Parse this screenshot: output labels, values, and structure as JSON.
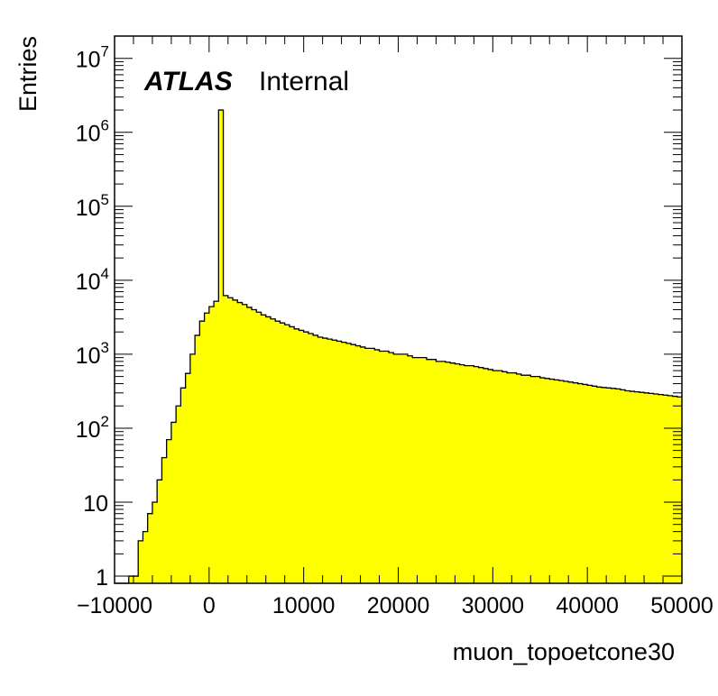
{
  "chart_data": {
    "type": "histogram",
    "title": "",
    "experiment_label": "ATLAS",
    "status_label": "Internal",
    "xlabel": "muon_topoetcone30",
    "ylabel": "Entries",
    "xlim": [
      -10000,
      50000
    ],
    "ylim": [
      0.8,
      20000000
    ],
    "log_y": true,
    "grid": false,
    "fill_color": "#ffff00",
    "line_color": "#000000",
    "x_ticks": [
      {
        "value": -10000,
        "label": "−10000"
      },
      {
        "value": 0,
        "label": "0"
      },
      {
        "value": 10000,
        "label": "10000"
      },
      {
        "value": 20000,
        "label": "20000"
      },
      {
        "value": 30000,
        "label": "30000"
      },
      {
        "value": 40000,
        "label": "40000"
      },
      {
        "value": 50000,
        "label": "50000"
      }
    ],
    "y_ticks": [
      {
        "value": 1,
        "base": "1",
        "exp": ""
      },
      {
        "value": 10,
        "base": "10",
        "exp": ""
      },
      {
        "value": 100,
        "base": "10",
        "exp": "2"
      },
      {
        "value": 1000,
        "base": "10",
        "exp": "3"
      },
      {
        "value": 10000,
        "base": "10",
        "exp": "4"
      },
      {
        "value": 100000,
        "base": "10",
        "exp": "5"
      },
      {
        "value": 1000000,
        "base": "10",
        "exp": "6"
      },
      {
        "value": 10000000,
        "base": "10",
        "exp": "7"
      }
    ],
    "bin_width": 500,
    "bin_start": -10000,
    "bin_counts": [
      0,
      0,
      0,
      1,
      1,
      3,
      4,
      7,
      10,
      20,
      40,
      70,
      120,
      200,
      350,
      550,
      1000,
      1800,
      2800,
      3600,
      4400,
      5200,
      2000000,
      6200,
      5800,
      5400,
      5000,
      4700,
      4300,
      4000,
      3700,
      3400,
      3200,
      3000,
      2800,
      2650,
      2500,
      2350,
      2200,
      2100,
      2000,
      1900,
      1800,
      1700,
      1650,
      1600,
      1550,
      1500,
      1450,
      1400,
      1350,
      1300,
      1250,
      1200,
      1200,
      1150,
      1100,
      1100,
      1050,
      1000,
      1000,
      1000,
      950,
      900,
      900,
      900,
      850,
      850,
      800,
      800,
      780,
      760,
      740,
      720,
      700,
      700,
      680,
      660,
      640,
      620,
      600,
      600,
      580,
      560,
      560,
      540,
      520,
      520,
      500,
      500,
      480,
      470,
      460,
      450,
      440,
      430,
      420,
      410,
      400,
      390,
      380,
      370,
      360,
      355,
      350,
      345,
      340,
      330,
      320,
      315,
      310,
      305,
      300,
      295,
      290,
      285,
      280,
      275,
      270,
      265
    ]
  }
}
